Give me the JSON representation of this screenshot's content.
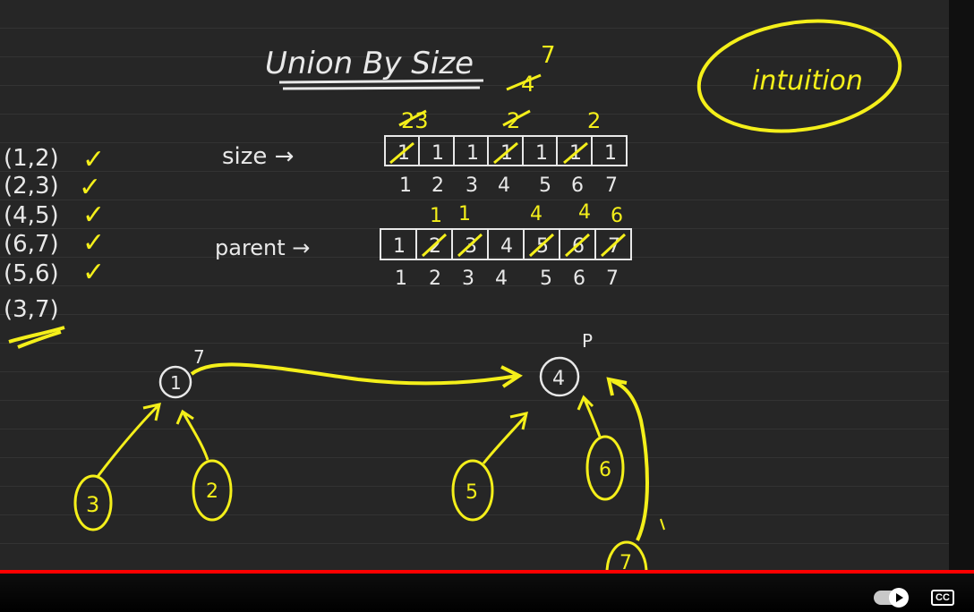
{
  "board": {
    "title": "Union By Size",
    "note": "intuition",
    "size_label": "size →",
    "parent_label": "parent →",
    "edges": [
      "(1,2)",
      "(2,3)",
      "(4,5)",
      "(6,7)",
      "(5,6)",
      "(3,7)"
    ],
    "edge_checked": [
      true,
      true,
      true,
      true,
      true,
      false
    ],
    "indices": [
      "1",
      "2",
      "3",
      "4",
      "5",
      "6",
      "7"
    ],
    "size_cells": [
      "1",
      "1",
      "1",
      "1",
      "1",
      "1",
      "1"
    ],
    "parent_cells": [
      "1",
      "2",
      "3",
      "4",
      "5",
      "6",
      "7"
    ],
    "size_updates": [
      "23",
      "2",
      "4",
      "7",
      "2"
    ],
    "parent_updates": [
      "1",
      "1",
      "4",
      "4",
      "6"
    ],
    "nodes": [
      "1",
      "3",
      "2",
      "4",
      "5",
      "6",
      "7"
    ],
    "node_marks": [
      "7",
      "P"
    ],
    "check_mark": "✓",
    "ink_color": "#f4ef1a",
    "chalk_color": "#e8e8e8"
  },
  "player": {
    "autoplay_icon": "autoplay-toggle-icon",
    "cc_label": "CC",
    "progress_color": "#ff0000"
  }
}
